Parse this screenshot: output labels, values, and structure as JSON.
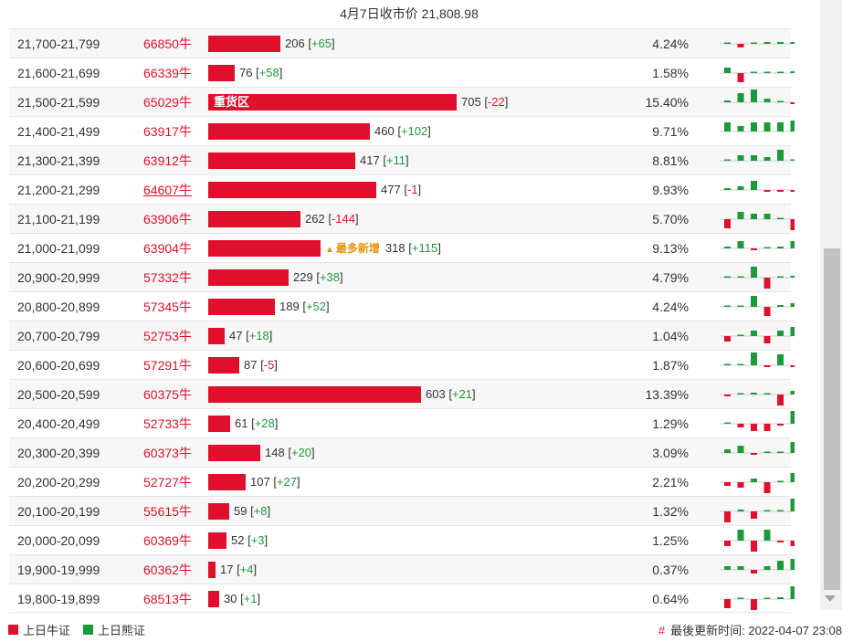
{
  "header": {
    "title": "4月7日收市价 21,808.98"
  },
  "colors": {
    "bull": "#e0102d",
    "bear": "#1c9a3b",
    "hot": "#e8900a"
  },
  "rows": [
    {
      "range": "21,700-21,799",
      "code": "66850牛",
      "count": "206",
      "change": "+65",
      "pct": "4.24%",
      "spark": [
        0,
        -2,
        0,
        1,
        1,
        1
      ]
    },
    {
      "range": "21,600-21,699",
      "code": "66339牛",
      "count": "76",
      "change": "+58",
      "pct": "1.58%",
      "spark": [
        3,
        -5,
        0,
        0,
        0,
        1
      ]
    },
    {
      "range": "21,500-21,599",
      "code": "65029牛",
      "count": "705",
      "change": "-22",
      "pct": "15.40%",
      "label": "重货区",
      "spark": [
        1,
        5,
        7,
        2,
        0,
        -1
      ]
    },
    {
      "range": "21,400-21,499",
      "code": "63917牛",
      "count": "460",
      "change": "+102",
      "pct": "9.71%",
      "spark": [
        5,
        3,
        5,
        5,
        5,
        6
      ]
    },
    {
      "range": "21,300-21,399",
      "code": "63912牛",
      "count": "417",
      "change": "+11",
      "pct": "8.81%",
      "spark": [
        0,
        3,
        3,
        2,
        6,
        0
      ]
    },
    {
      "range": "21,200-21,299",
      "code": "64607牛",
      "count": "477",
      "change": "-1",
      "pct": "9.93%",
      "underline": true,
      "spark": [
        1,
        2,
        5,
        -1,
        -1,
        -1
      ]
    },
    {
      "range": "21,100-21,199",
      "code": "63906牛",
      "count": "262",
      "change": "-144",
      "pct": "5.70%",
      "spark": [
        -5,
        4,
        3,
        3,
        0,
        -6
      ]
    },
    {
      "range": "21,000-21,099",
      "code": "63904牛",
      "count": "318",
      "change": "+115",
      "pct": "9.13%",
      "hot": "最多新增",
      "spark": [
        1,
        4,
        -1,
        0,
        1,
        4
      ]
    },
    {
      "range": "20,900-20,999",
      "code": "57332牛",
      "count": "229",
      "change": "+38",
      "pct": "4.79%",
      "spark": [
        0,
        0,
        6,
        -6,
        0,
        1
      ]
    },
    {
      "range": "20,800-20,899",
      "code": "57345牛",
      "count": "189",
      "change": "+52",
      "pct": "4.24%",
      "spark": [
        0,
        0,
        6,
        -5,
        1,
        2
      ]
    },
    {
      "range": "20,700-20,799",
      "code": "52753牛",
      "count": "47",
      "change": "+18",
      "pct": "1.04%",
      "spark": [
        -3,
        0,
        3,
        -4,
        3,
        5
      ]
    },
    {
      "range": "20,600-20,699",
      "code": "57291牛",
      "count": "87",
      "change": "-5",
      "pct": "1.87%",
      "spark": [
        0,
        0,
        7,
        -1,
        6,
        -1
      ]
    },
    {
      "range": "20,500-20,599",
      "code": "60375牛",
      "count": "603",
      "change": "+21",
      "pct": "13.39%",
      "spark": [
        -1,
        0,
        1,
        0,
        -6,
        2
      ]
    },
    {
      "range": "20,400-20,499",
      "code": "52733牛",
      "count": "61",
      "change": "+28",
      "pct": "1.29%",
      "spark": [
        0,
        -2,
        -4,
        -4,
        -1,
        7
      ]
    },
    {
      "range": "20,300-20,399",
      "code": "60373牛",
      "count": "148",
      "change": "+20",
      "pct": "3.09%",
      "spark": [
        2,
        4,
        -1,
        0,
        0,
        6
      ]
    },
    {
      "range": "20,200-20,299",
      "code": "52727牛",
      "count": "107",
      "change": "+27",
      "pct": "2.21%",
      "spark": [
        -2,
        -3,
        2,
        -6,
        0,
        5
      ]
    },
    {
      "range": "20,100-20,199",
      "code": "55615牛",
      "count": "59",
      "change": "+8",
      "pct": "1.32%",
      "spark": [
        -6,
        1,
        -4,
        0,
        0,
        7
      ]
    },
    {
      "range": "20,000-20,099",
      "code": "60369牛",
      "count": "52",
      "change": "+3",
      "pct": "1.25%",
      "spark": [
        -3,
        6,
        -6,
        6,
        -1,
        -3
      ]
    },
    {
      "range": "19,900-19,999",
      "code": "60362牛",
      "count": "17",
      "change": "+4",
      "pct": "0.37%",
      "spark": [
        2,
        2,
        -2,
        2,
        5,
        6
      ]
    },
    {
      "range": "19,800-19,899",
      "code": "68513牛",
      "count": "30",
      "change": "+1",
      "pct": "0.64%",
      "spark": [
        -5,
        0,
        -6,
        0,
        1,
        7
      ]
    }
  ],
  "legend": {
    "bull": "上日牛证",
    "bear": "上日熊证"
  },
  "updated": {
    "hash": "#",
    "text": "最後更新时间: 2022-04-07 23:08"
  }
}
